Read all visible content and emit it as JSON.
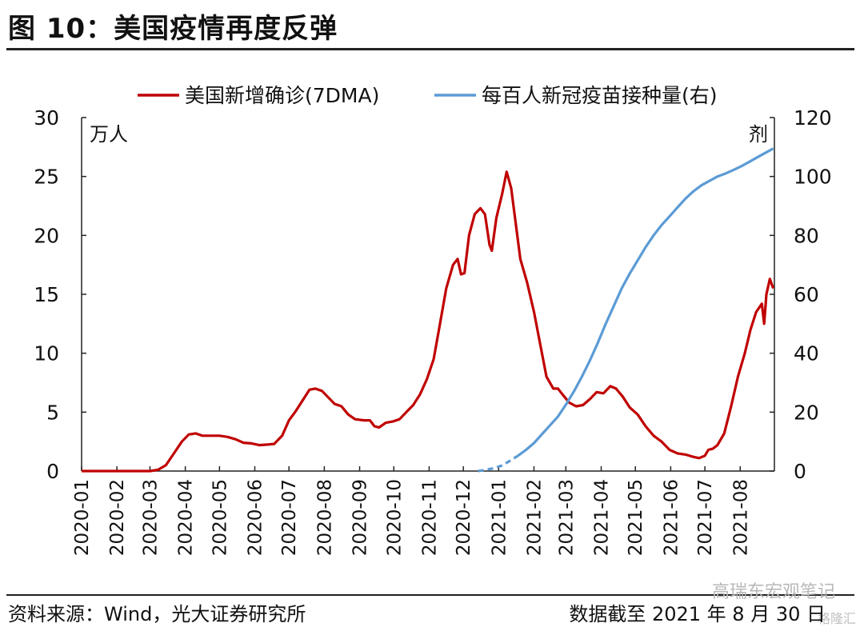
{
  "figure": {
    "title": "图 10：美国疫情再度反弹",
    "source": "资料来源：Wind，光大证券研究所",
    "cutoff": "数据截至 2021 年 8 月 30 日",
    "watermark": "高瑞东宏观笔记",
    "watermark_logo": "格隆汇"
  },
  "chart_data": {
    "type": "line",
    "xlabel": "",
    "x_ticks": [
      "2020-01",
      "2020-02",
      "2020-03",
      "2020-04",
      "2020-05",
      "2020-06",
      "2020-07",
      "2020-08",
      "2020-09",
      "2020-10",
      "2020-11",
      "2020-12",
      "2021-01",
      "2021-02",
      "2021-03",
      "2021-04",
      "2021-05",
      "2021-06",
      "2021-07",
      "2021-08"
    ],
    "x_range": [
      "2020-01-01",
      "2021-08-31"
    ],
    "left_axis": {
      "unit": "万人",
      "ylim": [
        0,
        30
      ],
      "ticks": [
        0,
        5,
        10,
        15,
        20,
        25,
        30
      ]
    },
    "right_axis": {
      "unit": "剂",
      "ylim": [
        0,
        120
      ],
      "ticks": [
        0,
        20,
        40,
        60,
        80,
        100,
        120
      ]
    },
    "grid": false,
    "legend": "top",
    "colors": {
      "cases": "#c00000",
      "vaccine": "#5b9bd5"
    },
    "series": [
      {
        "name": "美国新增确诊(7DMA)",
        "axis": "left",
        "points": [
          [
            "2020-01-01",
            0
          ],
          [
            "2020-02-01",
            0
          ],
          [
            "2020-03-01",
            0
          ],
          [
            "2020-03-08",
            0.1
          ],
          [
            "2020-03-15",
            0.5
          ],
          [
            "2020-03-22",
            1.5
          ],
          [
            "2020-03-29",
            2.5
          ],
          [
            "2020-04-04",
            3.1
          ],
          [
            "2020-04-10",
            3.2
          ],
          [
            "2020-04-16",
            3.0
          ],
          [
            "2020-04-25",
            3.0
          ],
          [
            "2020-05-01",
            3.0
          ],
          [
            "2020-05-08",
            2.9
          ],
          [
            "2020-05-15",
            2.7
          ],
          [
            "2020-05-22",
            2.4
          ],
          [
            "2020-05-29",
            2.35
          ],
          [
            "2020-06-05",
            2.2
          ],
          [
            "2020-06-12",
            2.25
          ],
          [
            "2020-06-18",
            2.3
          ],
          [
            "2020-06-25",
            3.0
          ],
          [
            "2020-07-01",
            4.3
          ],
          [
            "2020-07-07",
            5.1
          ],
          [
            "2020-07-13",
            6.0
          ],
          [
            "2020-07-19",
            6.9
          ],
          [
            "2020-07-24",
            7.0
          ],
          [
            "2020-07-30",
            6.8
          ],
          [
            "2020-08-05",
            6.2
          ],
          [
            "2020-08-10",
            5.7
          ],
          [
            "2020-08-16",
            5.5
          ],
          [
            "2020-08-22",
            4.8
          ],
          [
            "2020-08-28",
            4.4
          ],
          [
            "2020-09-05",
            4.3
          ],
          [
            "2020-09-10",
            4.3
          ],
          [
            "2020-09-14",
            3.8
          ],
          [
            "2020-09-18",
            3.7
          ],
          [
            "2020-09-24",
            4.1
          ],
          [
            "2020-09-30",
            4.2
          ],
          [
            "2020-10-06",
            4.4
          ],
          [
            "2020-10-12",
            5.0
          ],
          [
            "2020-10-18",
            5.6
          ],
          [
            "2020-10-24",
            6.5
          ],
          [
            "2020-10-30",
            7.8
          ],
          [
            "2020-11-05",
            9.5
          ],
          [
            "2020-11-10",
            12.2
          ],
          [
            "2020-11-16",
            15.5
          ],
          [
            "2020-11-22",
            17.5
          ],
          [
            "2020-11-26",
            18.0
          ],
          [
            "2020-11-29",
            16.7
          ],
          [
            "2020-12-02",
            16.8
          ],
          [
            "2020-12-06",
            20.0
          ],
          [
            "2020-12-11",
            21.8
          ],
          [
            "2020-12-16",
            22.3
          ],
          [
            "2020-12-20",
            21.8
          ],
          [
            "2020-12-24",
            19.2
          ],
          [
            "2020-12-26",
            18.7
          ],
          [
            "2020-12-30",
            21.5
          ],
          [
            "2021-01-04",
            23.5
          ],
          [
            "2021-01-08",
            25.4
          ],
          [
            "2021-01-12",
            24.0
          ],
          [
            "2021-01-16",
            21.0
          ],
          [
            "2021-01-20",
            18.0
          ],
          [
            "2021-01-26",
            16.0
          ],
          [
            "2021-02-01",
            13.5
          ],
          [
            "2021-02-07",
            10.5
          ],
          [
            "2021-02-12",
            8.0
          ],
          [
            "2021-02-18",
            7.0
          ],
          [
            "2021-02-22",
            7.0
          ],
          [
            "2021-02-26",
            6.5
          ],
          [
            "2021-03-04",
            5.8
          ],
          [
            "2021-03-10",
            5.5
          ],
          [
            "2021-03-16",
            5.6
          ],
          [
            "2021-03-22",
            6.1
          ],
          [
            "2021-03-28",
            6.7
          ],
          [
            "2021-04-03",
            6.6
          ],
          [
            "2021-04-09",
            7.2
          ],
          [
            "2021-04-14",
            7.0
          ],
          [
            "2021-04-20",
            6.3
          ],
          [
            "2021-04-26",
            5.4
          ],
          [
            "2021-05-03",
            4.8
          ],
          [
            "2021-05-10",
            3.8
          ],
          [
            "2021-05-17",
            3.0
          ],
          [
            "2021-05-24",
            2.5
          ],
          [
            "2021-05-31",
            1.8
          ],
          [
            "2021-06-07",
            1.5
          ],
          [
            "2021-06-14",
            1.4
          ],
          [
            "2021-06-21",
            1.2
          ],
          [
            "2021-06-26",
            1.1
          ],
          [
            "2021-07-01",
            1.3
          ],
          [
            "2021-07-04",
            1.8
          ],
          [
            "2021-07-08",
            1.9
          ],
          [
            "2021-07-12",
            2.2
          ],
          [
            "2021-07-18",
            3.2
          ],
          [
            "2021-07-24",
            5.5
          ],
          [
            "2021-07-30",
            8.0
          ],
          [
            "2021-08-05",
            10.0
          ],
          [
            "2021-08-10",
            12.0
          ],
          [
            "2021-08-15",
            13.5
          ],
          [
            "2021-08-20",
            14.2
          ],
          [
            "2021-08-22",
            12.5
          ],
          [
            "2021-08-24",
            15.0
          ],
          [
            "2021-08-27",
            16.3
          ],
          [
            "2021-08-30",
            15.5
          ]
        ]
      },
      {
        "name": "每百人新冠疫苗接种量(右)",
        "axis": "right",
        "points": [
          [
            "2020-12-14",
            0
          ],
          [
            "2020-12-21",
            0.4
          ],
          [
            "2020-12-28",
            1.0
          ],
          [
            "2021-01-04",
            1.9
          ],
          [
            "2021-01-11",
            3.5
          ],
          [
            "2021-01-18",
            5.2
          ],
          [
            "2021-01-25",
            7.2
          ],
          [
            "2021-02-01",
            9.5
          ],
          [
            "2021-02-08",
            12.5
          ],
          [
            "2021-02-15",
            15.5
          ],
          [
            "2021-02-22",
            18.5
          ],
          [
            "2021-03-01",
            22.5
          ],
          [
            "2021-03-08",
            27.0
          ],
          [
            "2021-03-15",
            32.0
          ],
          [
            "2021-03-22",
            37.5
          ],
          [
            "2021-03-29",
            43.5
          ],
          [
            "2021-04-05",
            50.0
          ],
          [
            "2021-04-12",
            56.0
          ],
          [
            "2021-04-19",
            62.0
          ],
          [
            "2021-04-26",
            67.0
          ],
          [
            "2021-05-03",
            71.5
          ],
          [
            "2021-05-10",
            76.0
          ],
          [
            "2021-05-17",
            80.0
          ],
          [
            "2021-05-24",
            83.5
          ],
          [
            "2021-05-31",
            86.5
          ],
          [
            "2021-06-07",
            89.5
          ],
          [
            "2021-06-14",
            92.5
          ],
          [
            "2021-06-21",
            95.0
          ],
          [
            "2021-06-28",
            97.0
          ],
          [
            "2021-07-05",
            98.5
          ],
          [
            "2021-07-12",
            100.0
          ],
          [
            "2021-07-19",
            101.0
          ],
          [
            "2021-07-26",
            102.2
          ],
          [
            "2021-08-02",
            103.5
          ],
          [
            "2021-08-09",
            105.0
          ],
          [
            "2021-08-16",
            106.5
          ],
          [
            "2021-08-23",
            108.0
          ],
          [
            "2021-08-30",
            109.5
          ]
        ]
      }
    ]
  }
}
